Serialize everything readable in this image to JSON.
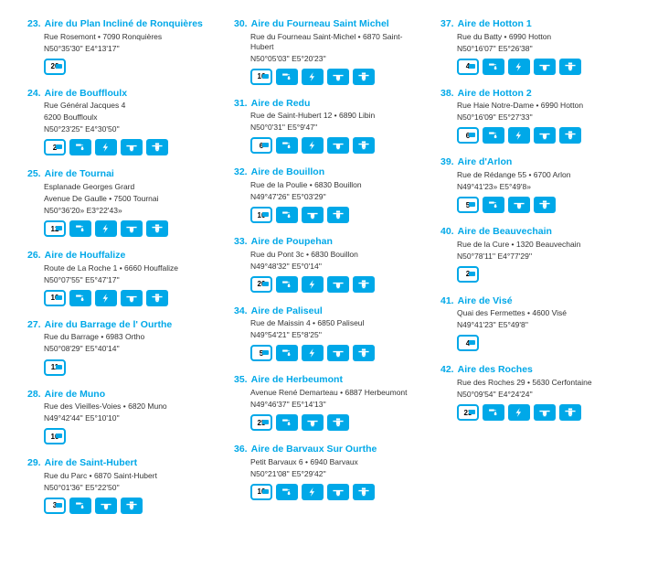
{
  "accent_color": "#00a8e8",
  "text_color": "#333333",
  "background_color": "#ffffff",
  "title_fontsize": 10.5,
  "body_fontsize": 8.5,
  "icon_types": {
    "capacity": "rv-capacity-badge",
    "water": "water-tap",
    "electric": "electricity-bolt",
    "grey": "grey-water-dump",
    "black": "black-water-dump"
  },
  "columns": [
    [
      {
        "num": "23.",
        "title": "Aire du Plan Incliné de Ronquières",
        "addr": "Rue Rosemont • 7090 Ronquières",
        "coords": "N50°35'30'' E4°13'17''",
        "capacity": "20",
        "icons": [
          "capacity"
        ]
      },
      {
        "num": "24.",
        "title": "Aire de Bouffloulx",
        "addr": "Rue Général Jacques 4\n6200 Bouffloulx",
        "coords": "N50°23'25'' E4°30'50''",
        "capacity": "2",
        "icons": [
          "capacity",
          "water",
          "electric",
          "grey",
          "black"
        ]
      },
      {
        "num": "25.",
        "title": "Aire de Tournai",
        "addr": "Esplanade Georges Grard\nAvenue De Gaulle • 7500 Tournai",
        "coords": "N50°36'20» E3°22'43»",
        "capacity": "12",
        "icons": [
          "capacity",
          "water",
          "electric",
          "grey",
          "black"
        ]
      },
      {
        "num": "26.",
        "title": "Aire de Houffalize",
        "addr": "Route de La Roche 1 • 6660 Houffalize",
        "coords": "N50°07'55'' E5°47'17''",
        "capacity": "10",
        "icons": [
          "capacity",
          "water",
          "electric",
          "grey",
          "black"
        ]
      },
      {
        "num": "27.",
        "title": "Aire du Barrage de l' Ourthe",
        "addr": "Rue du Barrage • 6983 Ortho",
        "coords": "N50°08'29'' E5°40'14''",
        "capacity": "11",
        "icons": [
          "capacity"
        ]
      },
      {
        "num": "28.",
        "title": "Aire de Muno",
        "addr": "Rue des Vieilles-Voies • 6820 Muno",
        "coords": "N49°42'44'' E5°10'10''",
        "capacity": "10",
        "icons": [
          "capacity"
        ]
      },
      {
        "num": "29.",
        "title": "Aire de Saint-Hubert",
        "addr": "Rue du Parc • 6870 Saint-Hubert",
        "coords": "N50°01'36'' E5°22'50''",
        "capacity": "3",
        "icons": [
          "capacity",
          "water",
          "grey",
          "black"
        ]
      }
    ],
    [
      {
        "num": "30.",
        "title": "Aire du Fourneau Saint Michel",
        "addr": "Rue du Fourneau Saint-Michel • 6870 Saint-Hubert",
        "coords": "N50°05'03'' E5°20'23''",
        "capacity": "16",
        "icons": [
          "capacity",
          "water",
          "electric",
          "grey",
          "black"
        ]
      },
      {
        "num": "31.",
        "title": "Aire de Redu",
        "addr": "Rue de Saint-Hubert 12 • 6890 Libin",
        "coords": "N50°0'31'' E5°9'47''",
        "capacity": "6",
        "icons": [
          "capacity",
          "water",
          "electric",
          "grey",
          "black"
        ]
      },
      {
        "num": "32.",
        "title": "Aire de Bouillon",
        "addr": "Rue de la Poulie • 6830 Bouillon",
        "coords": "N49°47'26'' E5°03'29''",
        "capacity": "10",
        "icons": [
          "capacity",
          "water",
          "grey",
          "black"
        ]
      },
      {
        "num": "33.",
        "title": "Aire de Poupehan",
        "addr": "Rue du Pont 3c • 6830 Bouillon",
        "coords": "N49°48'32'' E5°0'14''",
        "capacity": "20",
        "icons": [
          "capacity",
          "water",
          "electric",
          "grey",
          "black"
        ]
      },
      {
        "num": "34.",
        "title": "Aire de Paliseul",
        "addr": "Rue de Maissin 4 • 6850 Paliseul",
        "coords": "N49°54'21'' E5°8'25''",
        "capacity": "5",
        "icons": [
          "capacity",
          "water",
          "electric",
          "grey",
          "black"
        ]
      },
      {
        "num": "35.",
        "title": "Aire de Herbeumont",
        "addr": "Avenue René Demarteau • 6887 Herbeumont",
        "coords": "N49°46'37'' E5°14'13''",
        "capacity": "25",
        "icons": [
          "capacity",
          "water",
          "grey",
          "black"
        ]
      },
      {
        "num": "36.",
        "title": "Aire de Barvaux Sur Ourthe",
        "addr": "Petit Barvaux 6 • 6940 Barvaux",
        "coords": "N50°21'08'' E5°29'42''",
        "capacity": "10",
        "icons": [
          "capacity",
          "water",
          "electric",
          "grey",
          "black"
        ]
      }
    ],
    [
      {
        "num": "37.",
        "title": "Aire de Hotton 1",
        "addr": "Rue du Batty • 6990 Hotton",
        "coords": "N50°16'07'' E5°26'38''",
        "capacity": "4",
        "icons": [
          "capacity",
          "water",
          "electric",
          "grey",
          "black"
        ]
      },
      {
        "num": "38.",
        "title": "Aire de Hotton 2",
        "addr": "Rue Haie Notre-Dame • 6990 Hotton",
        "coords": "N50°16'09'' E5°27'33''",
        "capacity": "6",
        "icons": [
          "capacity",
          "water",
          "electric",
          "grey",
          "black"
        ]
      },
      {
        "num": "39.",
        "title": "Aire d'Arlon",
        "addr": "Rue de Rédange 55 • 6700 Arlon",
        "coords": "N49°41'23» E5°49'8»",
        "capacity": "5",
        "icons": [
          "capacity",
          "water",
          "grey",
          "black"
        ]
      },
      {
        "num": "40.",
        "title": "Aire de Beauvechain",
        "addr": "Rue de la Cure • 1320 Beauvechain",
        "coords": "N50°78'11'' E4°77'29''",
        "capacity": "2",
        "icons": [
          "capacity"
        ]
      },
      {
        "num": "41.",
        "title": "Aire de Visé",
        "addr": "Quai des Fermettes • 4600 Visé",
        "coords": "N49°41'23'' E5°49'8''",
        "capacity": "4",
        "icons": [
          "capacity"
        ]
      },
      {
        "num": "42.",
        "title": "Aire des Roches",
        "addr": "Rue des Roches 29 • 5630 Cerfontaine",
        "coords": "N50°09'54'' E4°24'24''",
        "capacity": "23",
        "icons": [
          "capacity",
          "water",
          "electric",
          "grey",
          "black"
        ]
      }
    ]
  ]
}
